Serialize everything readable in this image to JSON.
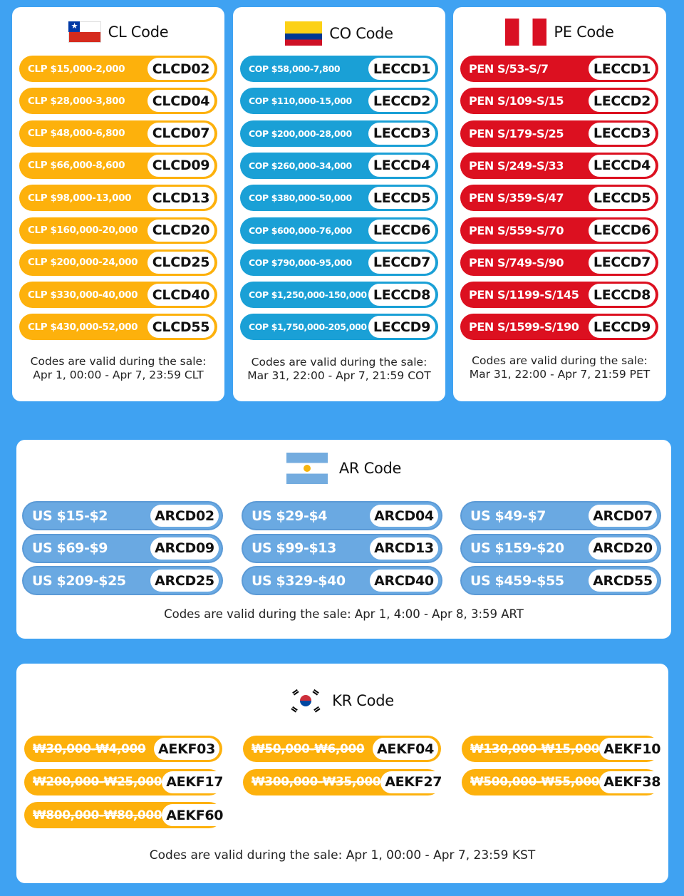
{
  "cl": {
    "title": "CL Code",
    "flag_icon": "chile-flag-icon",
    "color": "#fdb10c",
    "rows": [
      {
        "price": "CLP $15,000-2,000",
        "code": "CLCD02"
      },
      {
        "price": "CLP $28,000-3,800",
        "code": "CLCD04"
      },
      {
        "price": "CLP $48,000-6,800",
        "code": "CLCD07"
      },
      {
        "price": "CLP $66,000-8,600",
        "code": "CLCD09"
      },
      {
        "price": "CLP $98,000-13,000",
        "code": "CLCD13"
      },
      {
        "price": "CLP $160,000-20,000",
        "code": "CLCD20"
      },
      {
        "price": "CLP $200,000-24,000",
        "code": "CLCD25"
      },
      {
        "price": "CLP $330,000-40,000",
        "code": "CLCD40"
      },
      {
        "price": "CLP $430,000-52,000",
        "code": "CLCD55"
      }
    ],
    "note_line1": "Codes are valid during the sale:",
    "note_line2": "Apr 1, 00:00 - Apr 7, 23:59 CLT"
  },
  "co": {
    "title": "CO Code",
    "flag_icon": "colombia-flag-icon",
    "color": "#1aa0d6",
    "rows": [
      {
        "price": "COP $58,000-7,800",
        "code": "LECCD1"
      },
      {
        "price": "COP $110,000-15,000",
        "code": "LECCD2"
      },
      {
        "price": "COP $200,000-28,000",
        "code": "LECCD3"
      },
      {
        "price": "COP $260,000-34,000",
        "code": "LECCD4"
      },
      {
        "price": "COP $380,000-50,000",
        "code": "LECCD5"
      },
      {
        "price": "COP $600,000-76,000",
        "code": "LECCD6"
      },
      {
        "price": "COP $790,000-95,000",
        "code": "LECCD7"
      },
      {
        "price": "COP $1,250,000-150,000",
        "code": "LECCD8"
      },
      {
        "price": "COP $1,750,000-205,000",
        "code": "LECCD9"
      }
    ],
    "note_line1": "Codes are valid during the sale:",
    "note_line2": "Mar 31, 22:00 - Apr 7, 21:59 COT"
  },
  "pe": {
    "title": "PE Code",
    "flag_icon": "peru-flag-icon",
    "color": "#dc1020",
    "rows": [
      {
        "price": "PEN S/53-S/7",
        "code": "LECCD1"
      },
      {
        "price": "PEN S/109-S/15",
        "code": "LECCD2"
      },
      {
        "price": "PEN S/179-S/25",
        "code": "LECCD3"
      },
      {
        "price": "PEN S/249-S/33",
        "code": "LECCD4"
      },
      {
        "price": "PEN S/359-S/47",
        "code": "LECCD5"
      },
      {
        "price": "PEN S/559-S/70",
        "code": "LECCD6"
      },
      {
        "price": "PEN S/749-S/90",
        "code": "LECCD7"
      },
      {
        "price": "PEN S/1199-S/145",
        "code": "LECCD8"
      },
      {
        "price": "PEN S/1599-S/190",
        "code": "LECCD9"
      }
    ],
    "note_line1": "Codes are valid during the sale:",
    "note_line2": "Mar 31, 22:00 - Apr 7, 21:59 PET"
  },
  "ar": {
    "title": "AR Code",
    "flag_icon": "argentina-flag-icon",
    "color": "#6aa9e2",
    "rows": [
      {
        "price": "US $15-$2",
        "code": "ARCD02"
      },
      {
        "price": "US $29-$4",
        "code": "ARCD04"
      },
      {
        "price": "US $49-$7",
        "code": "ARCD07"
      },
      {
        "price": "US $69-$9",
        "code": "ARCD09"
      },
      {
        "price": "US $99-$13",
        "code": "ARCD13"
      },
      {
        "price": "US $159-$20",
        "code": "ARCD20"
      },
      {
        "price": "US $209-$25",
        "code": "ARCD25"
      },
      {
        "price": "US $329-$40",
        "code": "ARCD40"
      },
      {
        "price": "US $459-$55",
        "code": "ARCD55"
      }
    ],
    "note": "Codes are valid during the sale: Apr 1, 4:00 - Apr 8, 3:59 ART"
  },
  "kr": {
    "title": "KR Code",
    "flag_icon": "south-korea-flag-icon",
    "color": "#fdb10c",
    "rows": [
      {
        "price": "₩30,000-₩4,000",
        "code": "AEKF03"
      },
      {
        "price": "₩50,000-₩6,000",
        "code": "AEKF04"
      },
      {
        "price": "₩130,000-₩15,000",
        "code": "AEKF10"
      },
      {
        "price": "₩200,000-₩25,000",
        "code": "AEKF17"
      },
      {
        "price": "₩300,000-₩35,000",
        "code": "AEKF27"
      },
      {
        "price": "₩500,000-₩55,000",
        "code": "AEKF38"
      },
      {
        "price": "₩800,000-₩80,000",
        "code": "AEKF60"
      }
    ],
    "note": "Codes are valid during the sale: Apr 1, 00:00 - Apr 7, 23:59 KST"
  }
}
